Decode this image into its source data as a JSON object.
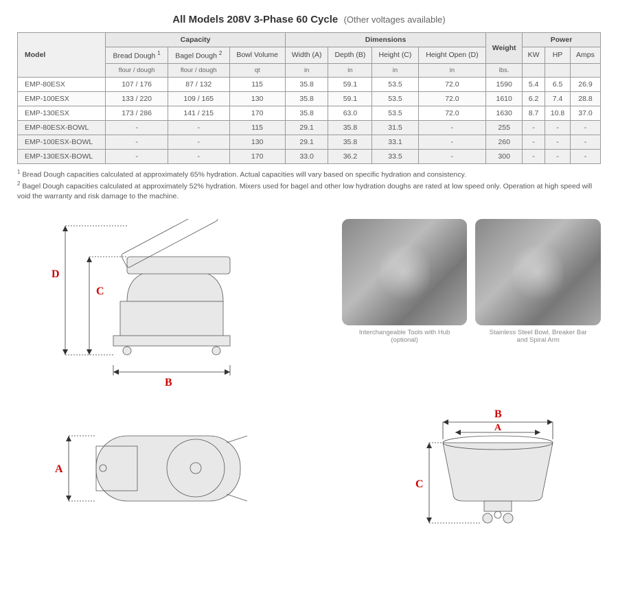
{
  "title_main": "All Models 208V  3-Phase 60 Cycle",
  "title_sub": "(Other voltages available)",
  "headers": {
    "model": "Model",
    "capacity": "Capacity",
    "dimensions": "Dimensions",
    "weight": "Weight",
    "power": "Power",
    "bread": "Bread Dough",
    "bagel": "Bagel Dough",
    "bowl": "Bowl Volume",
    "width": "Width (A)",
    "depth": "Depth (B)",
    "height": "Height (C)",
    "height_open": "Height Open (D)",
    "kw": "KW",
    "hp": "HP",
    "amps": "Amps"
  },
  "units": {
    "flour": "flour / dough",
    "qt": "qt",
    "in": "in",
    "lbs": "lbs."
  },
  "rows": [
    {
      "model": "EMP-80ESX",
      "bread": "107 / 176",
      "bagel": "87 / 132",
      "bowl": "115",
      "w": "35.8",
      "d": "59.1",
      "h": "53.5",
      "ho": "72.0",
      "wt": "1590",
      "kw": "5.4",
      "hp": "6.5",
      "amps": "26.9",
      "type": "data"
    },
    {
      "model": "EMP-100ESX",
      "bread": "133 / 220",
      "bagel": "109 / 165",
      "bowl": "130",
      "w": "35.8",
      "d": "59.1",
      "h": "53.5",
      "ho": "72.0",
      "wt": "1610",
      "kw": "6.2",
      "hp": "7.4",
      "amps": "28.8",
      "type": "data"
    },
    {
      "model": "EMP-130ESX",
      "bread": "173 / 286",
      "bagel": "141 / 215",
      "bowl": "170",
      "w": "35.8",
      "d": "63.0",
      "h": "53.5",
      "ho": "72.0",
      "wt": "1630",
      "kw": "8.7",
      "hp": "10.8",
      "amps": "37.0",
      "type": "data"
    },
    {
      "model": "EMP-80ESX-BOWL",
      "bread": "-",
      "bagel": "-",
      "bowl": "115",
      "w": "29.1",
      "d": "35.8",
      "h": "31.5",
      "ho": "-",
      "wt": "255",
      "kw": "-",
      "hp": "-",
      "amps": "-",
      "type": "bowl"
    },
    {
      "model": "EMP-100ESX-BOWL",
      "bread": "-",
      "bagel": "-",
      "bowl": "130",
      "w": "29.1",
      "d": "35.8",
      "h": "33.1",
      "ho": "-",
      "wt": "260",
      "kw": "-",
      "hp": "-",
      "amps": "-",
      "type": "bowl"
    },
    {
      "model": "EMP-130ESX-BOWL",
      "bread": "-",
      "bagel": "-",
      "bowl": "170",
      "w": "33.0",
      "d": "36.2",
      "h": "33.5",
      "ho": "-",
      "wt": "300",
      "kw": "-",
      "hp": "-",
      "amps": "-",
      "type": "bowl"
    }
  ],
  "footnote1_sup": "1",
  "footnote1": "Bread Dough capacities calculated at approximately 65% hydration. Actual capacities will vary based on specific hydration and consistency.",
  "footnote2_sup": "2",
  "footnote2": "Bagel Dough capacities calculated at approximately 52% hydration. Mixers used for bagel and other low hydration doughs are rated at low speed only. Operation at high speed will void the warranty and risk damage to the machine.",
  "caption1_line1": "Interchangeable Tools with Hub",
  "caption1_line2": "(optional)",
  "caption2_line1": "Stainless Steel Bowl, Breaker Bar",
  "caption2_line2": "and Spiral Arm",
  "dim": {
    "A": "A",
    "B": "B",
    "C": "C",
    "D": "D"
  },
  "colors": {
    "dim_label": "#cc0000",
    "line": "#555555",
    "bg": "#ffffff"
  }
}
